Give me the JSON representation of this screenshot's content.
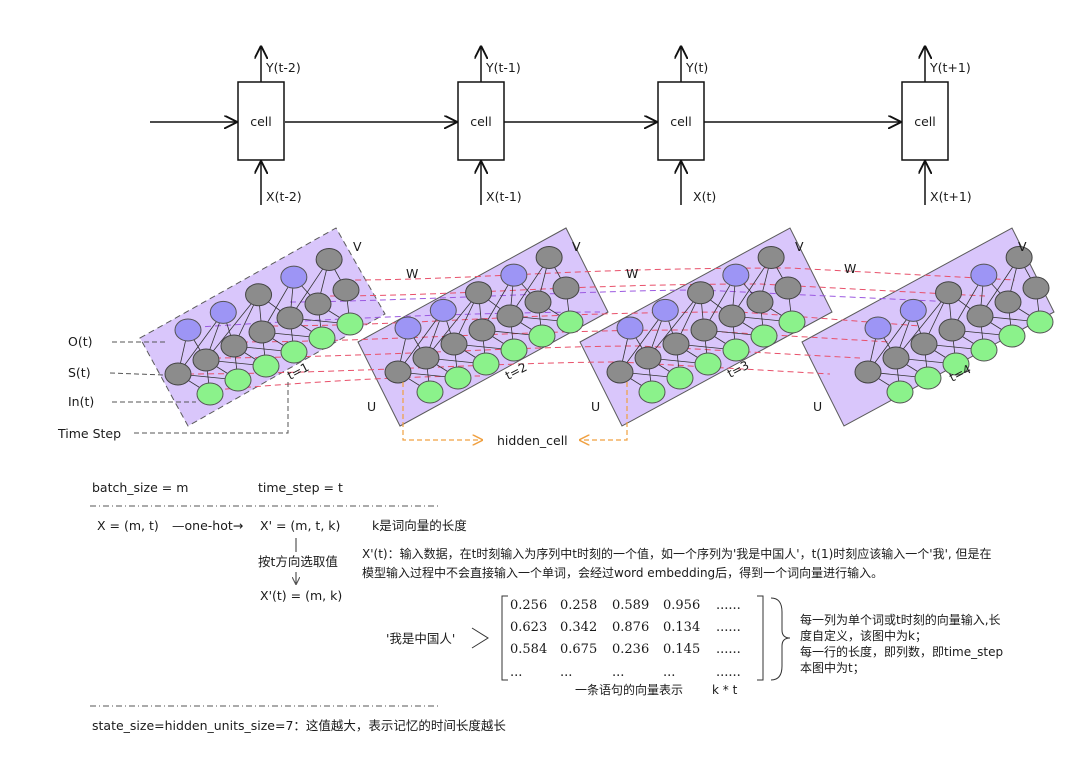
{
  "rnn_chain": {
    "cell_label": "cell",
    "cells": [
      {
        "output": "Y(t-2)",
        "input": "X(t-2)"
      },
      {
        "output": "Y(t-1)",
        "input": "X(t-1)"
      },
      {
        "output": "Y(t)",
        "input": "X(t)"
      },
      {
        "output": "Y(t+1)",
        "input": "X(t+1)"
      }
    ]
  },
  "unrolled": {
    "row_labels": {
      "output": "O(t)",
      "state": "S(t)",
      "input": "In(t)",
      "time_step": "Time Step"
    },
    "weight_labels": {
      "v": "V",
      "w": "W",
      "u": "U"
    },
    "hidden_cell_label": "hidden_cell",
    "panels": [
      {
        "time": "t=1"
      },
      {
        "time": "t=2"
      },
      {
        "time": "t=3"
      },
      {
        "time": "t=4"
      }
    ],
    "node_colors": {
      "output": "#9d95f5",
      "state": "#8c8c8c",
      "input": "#8bf28b",
      "panel": "#d9c6fb"
    }
  },
  "notes": {
    "batch_size": "batch_size = m",
    "time_step": "time_step = t",
    "x_shape": "X = (m, t)",
    "one_hot": "—one-hot→",
    "x_prime_shape": "X' = (m, t, k)",
    "k_desc": "k是词向量的长度",
    "select_desc": "按t方向选取值",
    "xt_shape": "X'(t) = (m, k)",
    "xt_desc_line1": "X'(t)：输入数据，在t时刻输入为序列中t时刻的一个值，如一个序列为'我是中国人'，t(1)时刻应该输入一个'我', 但是在",
    "xt_desc_line2": "模型输入过程中不会直接输入一个单词，会经过word embedding后，得到一个词向量进行输入。",
    "sentence": "'我是中国人'",
    "matrix_rows": [
      [
        "0.256",
        "0.258",
        "0.589",
        "0.956",
        "......"
      ],
      [
        "0.623",
        "0.342",
        "0.876",
        "0.134",
        "......"
      ],
      [
        "0.584",
        "0.675",
        "0.236",
        "0.145",
        "......"
      ],
      [
        "...",
        "...",
        "...",
        "...",
        "......"
      ]
    ],
    "matrix_caption": "一条语句的向量表示",
    "matrix_dims": "k * t",
    "brace_note_1": "每一列为单个词或t时刻的向量输入,长",
    "brace_note_2": "度自定义，该图中为k；",
    "brace_note_3": "每一行的长度，即列数，即time_step",
    "brace_note_4": "本图中为t；",
    "state_size": "state_size=hidden_units_size=7：这值越大，表示记忆的时间长度越长"
  }
}
